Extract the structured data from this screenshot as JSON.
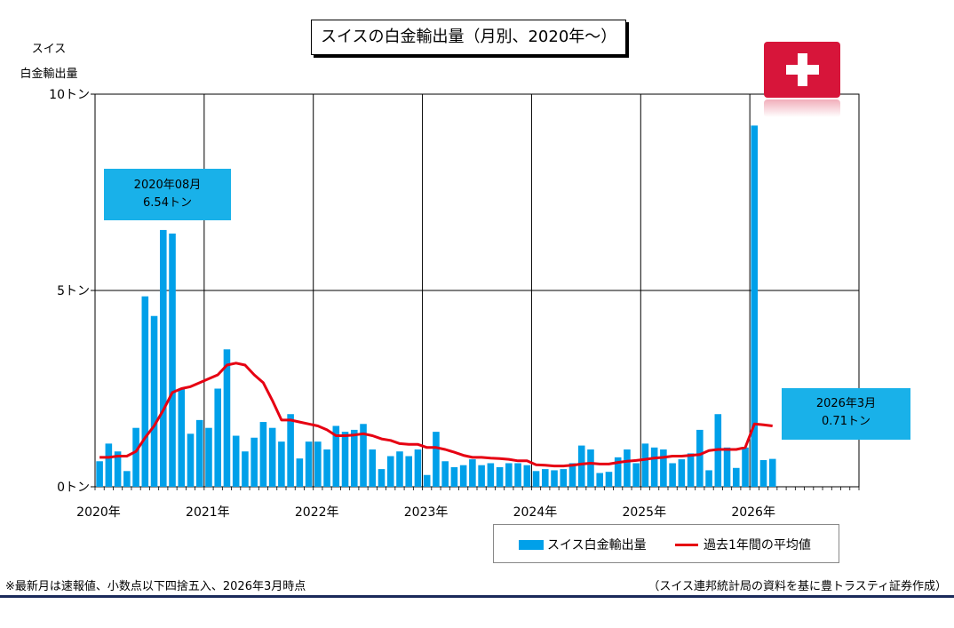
{
  "title": "スイスの白金輸出量（月別、2020年～）",
  "y_axis_label_line1": "スイス",
  "y_axis_label_line2": "白金輸出量",
  "callout_peak": {
    "line1": "2020年08月",
    "line2": "6.54トン"
  },
  "callout_latest": {
    "line1": "2026年3月",
    "line2": "0.71トン"
  },
  "legend": {
    "bar_label": "スイス白金輸出量",
    "line_label": "過去1年間の平均値"
  },
  "footnote_left": "※最新月は速報値、小数点以下四捨五入、2026年3月時点",
  "footnote_right": "（スイス連邦統計局の資料を基に豊トラスティ証券作成）",
  "colors": {
    "bar": "#00a0e9",
    "line": "#e60012",
    "callout": "#19b1e9",
    "flag": "#d7153a"
  },
  "chart_data": {
    "type": "bar",
    "title": "スイスの白金輸出量（月別、2020年～）",
    "ylabel": "スイス白金輸出量",
    "unit": "トン",
    "ylim": [
      0,
      10
    ],
    "y_ticks": [
      {
        "value": 0,
        "label": "0トン"
      },
      {
        "value": 5,
        "label": "5トン"
      },
      {
        "value": 10,
        "label": "10トン"
      }
    ],
    "x_ticks": [
      "2020年",
      "2021年",
      "2022年",
      "2023年",
      "2024年",
      "2025年",
      "2026年"
    ],
    "months_total": 84,
    "series": [
      {
        "name": "スイス白金輸出量",
        "type": "bar",
        "start": "2020-01",
        "values": [
          0.65,
          1.1,
          0.9,
          0.4,
          1.5,
          4.85,
          4.35,
          6.54,
          6.45,
          2.5,
          1.35,
          1.7,
          1.5,
          2.5,
          3.5,
          1.3,
          0.9,
          1.25,
          1.65,
          1.5,
          1.15,
          1.85,
          0.72,
          1.15,
          1.15,
          0.95,
          1.55,
          1.4,
          1.45,
          1.6,
          0.95,
          0.45,
          0.78,
          0.9,
          0.78,
          0.95,
          0.3,
          1.4,
          0.65,
          0.5,
          0.55,
          0.7,
          0.55,
          0.6,
          0.5,
          0.6,
          0.6,
          0.55,
          0.4,
          0.45,
          0.42,
          0.45,
          0.6,
          1.05,
          0.95,
          0.35,
          0.38,
          0.75,
          0.95,
          0.6,
          1.1,
          1.0,
          0.95,
          0.6,
          0.7,
          0.85,
          1.45,
          0.42,
          1.85,
          1.0,
          0.48,
          1.0,
          9.2,
          0.68,
          0.71
        ]
      },
      {
        "name": "過去1年間の平均値",
        "type": "line",
        "start": "2020-01",
        "values": [
          0.75,
          0.75,
          0.78,
          0.78,
          0.9,
          1.25,
          1.55,
          1.95,
          2.4,
          2.5,
          2.55,
          2.65,
          2.75,
          2.85,
          3.1,
          3.15,
          3.1,
          2.85,
          2.65,
          2.2,
          1.7,
          1.7,
          1.65,
          1.6,
          1.55,
          1.45,
          1.3,
          1.3,
          1.32,
          1.35,
          1.3,
          1.22,
          1.18,
          1.1,
          1.08,
          1.08,
          1.0,
          1.0,
          0.95,
          0.88,
          0.8,
          0.75,
          0.75,
          0.73,
          0.72,
          0.7,
          0.66,
          0.66,
          0.56,
          0.55,
          0.53,
          0.53,
          0.55,
          0.58,
          0.6,
          0.58,
          0.58,
          0.62,
          0.65,
          0.67,
          0.7,
          0.73,
          0.75,
          0.78,
          0.78,
          0.8,
          0.82,
          0.92,
          0.95,
          0.95,
          0.95,
          1.0,
          1.6,
          1.58,
          1.55
        ]
      }
    ]
  }
}
